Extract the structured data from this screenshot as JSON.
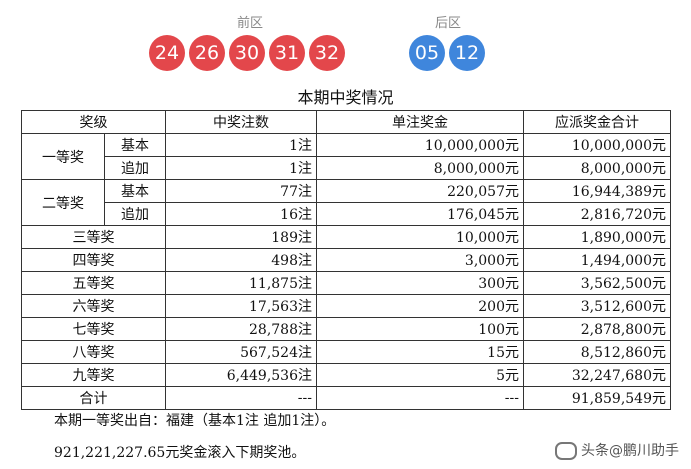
{
  "draw": {
    "front_label": "前区",
    "back_label": "后区",
    "front_numbers": [
      "24",
      "26",
      "30",
      "31",
      "32"
    ],
    "back_numbers": [
      "05",
      "12"
    ],
    "colors": {
      "front_ball": "#e3474b",
      "back_ball": "#3f86dc"
    }
  },
  "table": {
    "title": "本期中奖情况",
    "headers": [
      "奖级",
      "中奖注数",
      "单注奖金",
      "应派奖金合计"
    ],
    "first": {
      "label": "一等奖",
      "basic": {
        "sub": "基本",
        "count": "1注",
        "prize": "10,000,000元",
        "total": "10,000,000元"
      },
      "extra": {
        "sub": "追加",
        "count": "1注",
        "prize": "8,000,000元",
        "total": "8,000,000元"
      }
    },
    "second": {
      "label": "二等奖",
      "basic": {
        "sub": "基本",
        "count": "77注",
        "prize": "220,057元",
        "total": "16,944,389元"
      },
      "extra": {
        "sub": "追加",
        "count": "16注",
        "prize": "176,045元",
        "total": "2,816,720元"
      }
    },
    "rows": [
      {
        "level": "三等奖",
        "count": "189注",
        "prize": "10,000元",
        "total": "1,890,000元"
      },
      {
        "level": "四等奖",
        "count": "498注",
        "prize": "3,000元",
        "total": "1,494,000元"
      },
      {
        "level": "五等奖",
        "count": "11,875注",
        "prize": "300元",
        "total": "3,562,500元"
      },
      {
        "level": "六等奖",
        "count": "17,563注",
        "prize": "200元",
        "total": "3,512,600元"
      },
      {
        "level": "七等奖",
        "count": "28,788注",
        "prize": "100元",
        "total": "2,878,800元"
      },
      {
        "level": "八等奖",
        "count": "567,524注",
        "prize": "15元",
        "total": "8,512,860元"
      },
      {
        "level": "九等奖",
        "count": "6,449,536注",
        "prize": "5元",
        "total": "32,247,680元"
      }
    ],
    "total_row": {
      "level": "合计",
      "count": "---",
      "prize": "---",
      "total": "91,859,549元"
    }
  },
  "notes": {
    "origin": "本期一等奖出自：福建（基本1注 追加1注）。",
    "pool": "921,221,227.65元奖金滚入下期奖池。"
  },
  "watermark": {
    "text": "头条@鹏川助手",
    "icon": "chat-bubble-icon"
  }
}
